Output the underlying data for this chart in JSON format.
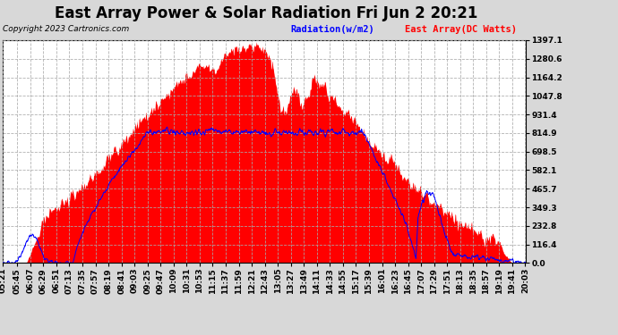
{
  "title": "East Array Power & Solar Radiation Fri Jun 2 20:21",
  "copyright": "Copyright 2023 Cartronics.com",
  "legend_radiation": "Radiation(w/m2)",
  "legend_east_array": "East Array(DC Watts)",
  "radiation_color": "blue",
  "east_array_fill_color": "red",
  "blue_line_color": "blue",
  "y_ticks": [
    0.0,
    116.4,
    232.8,
    349.3,
    465.7,
    582.1,
    698.5,
    814.9,
    931.4,
    1047.8,
    1164.2,
    1280.6,
    1397.1
  ],
  "y_max": 1397.1,
  "background_color": "#d8d8d8",
  "plot_background": "white",
  "title_fontsize": 12,
  "tick_fontsize": 6.5,
  "x_labels": [
    "05:21",
    "05:45",
    "06:07",
    "06:29",
    "06:51",
    "07:13",
    "07:35",
    "07:57",
    "08:19",
    "08:41",
    "09:03",
    "09:25",
    "09:47",
    "10:09",
    "10:31",
    "10:53",
    "11:15",
    "11:37",
    "11:59",
    "12:21",
    "12:43",
    "13:05",
    "13:27",
    "13:49",
    "14:11",
    "14:33",
    "14:55",
    "15:17",
    "15:39",
    "16:01",
    "16:23",
    "16:45",
    "17:07",
    "17:29",
    "17:51",
    "18:13",
    "18:35",
    "18:57",
    "19:19",
    "19:41",
    "20:03"
  ]
}
